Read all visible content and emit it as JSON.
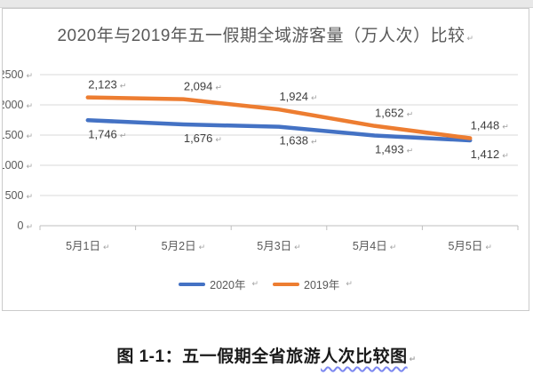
{
  "formatting_mark": "↵",
  "chart_data": {
    "type": "line",
    "title": "2020年与2019年五一假期全域游客量（万人次）比较",
    "categories": [
      "5月1日",
      "5月2日",
      "5月3日",
      "5月4日",
      "5月5日"
    ],
    "series": [
      {
        "name": "2020年",
        "color": "#4472C4",
        "values": [
          1746,
          1676,
          1638,
          1493,
          1412
        ],
        "data_label_position": "below"
      },
      {
        "name": "2019年",
        "color": "#ED7D31",
        "values": [
          2123,
          2094,
          1924,
          1652,
          1448
        ],
        "data_label_position": "above"
      }
    ],
    "xlabel": "",
    "ylabel": "",
    "ylim": [
      0,
      2500
    ],
    "ytick_step": 500,
    "grid": true,
    "legend_position": "bottom",
    "gridline_color": "#D9D9D9",
    "axis_line_color": "#BFBFBF",
    "axis_text_color": "#595959",
    "data_label_color": "#3f3f3f"
  },
  "caption": {
    "prefix": "图 1-1：",
    "body": "五一假期全省旅游",
    "underlined": "人次比较图"
  }
}
